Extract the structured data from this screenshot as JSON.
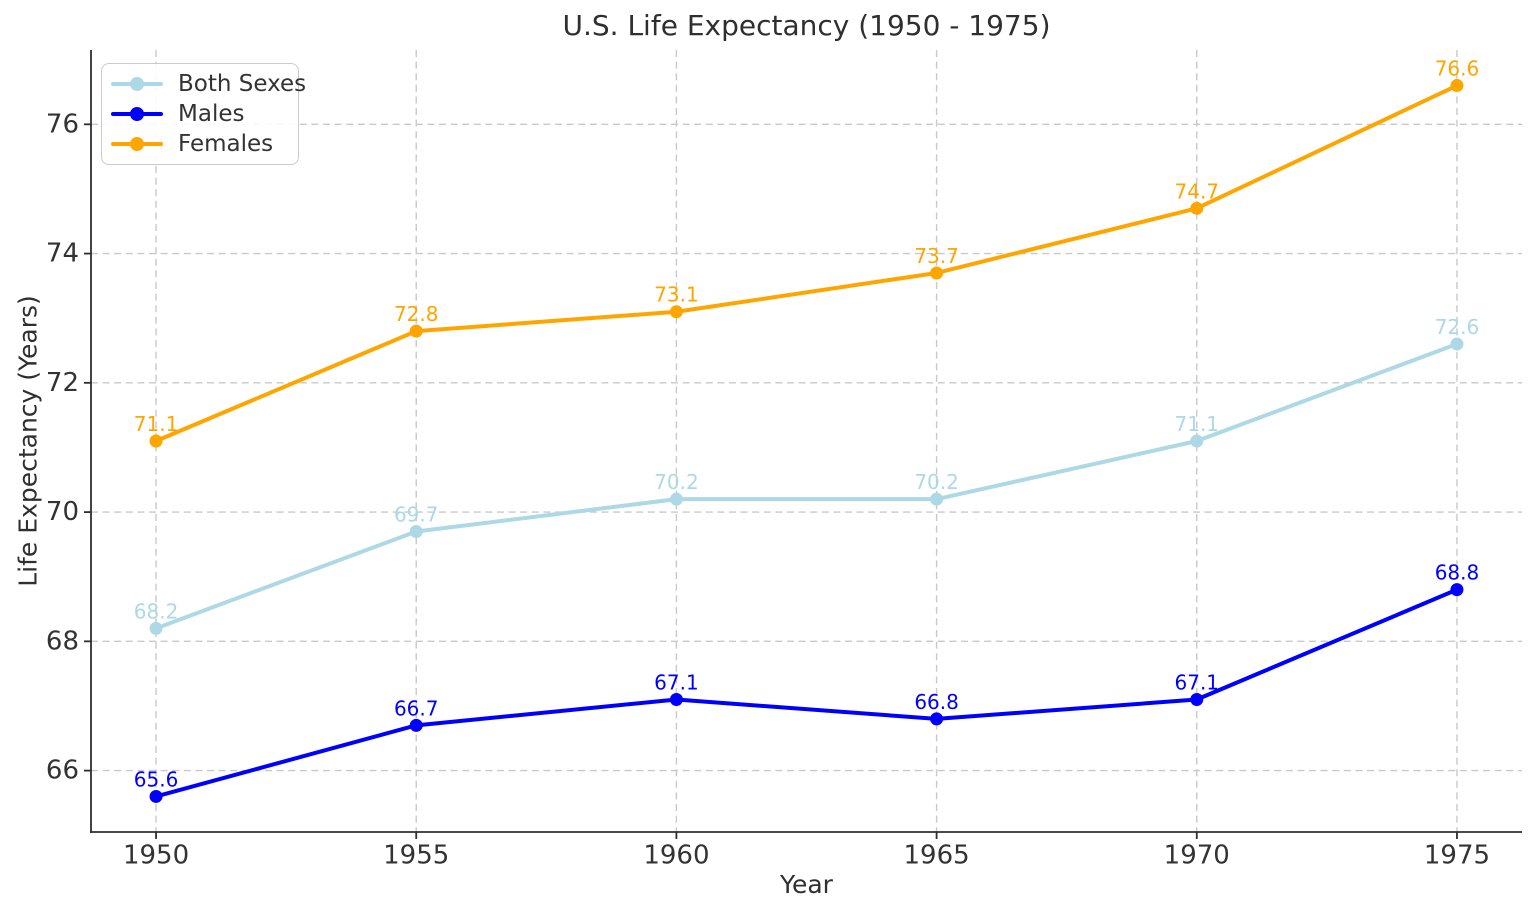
{
  "chart_data": {
    "type": "line",
    "title": "U.S. Life Expectancy (1950 - 1975)",
    "xlabel": "Year",
    "ylabel": "Life Expectancy (Years)",
    "x": [
      1950,
      1955,
      1960,
      1965,
      1970,
      1975
    ],
    "series": [
      {
        "name": "Both Sexes",
        "color": "#ADD8E6",
        "values": [
          68.2,
          69.7,
          70.2,
          70.2,
          71.1,
          72.6
        ]
      },
      {
        "name": "Males",
        "color": "#0000FF",
        "values": [
          65.6,
          66.7,
          67.1,
          66.8,
          67.1,
          68.8
        ]
      },
      {
        "name": "Females",
        "color": "#FFA500",
        "values": [
          71.1,
          72.8,
          73.1,
          73.7,
          74.7,
          76.6
        ]
      }
    ],
    "xticks": [
      1950,
      1955,
      1960,
      1965,
      1970,
      1975
    ],
    "yticks": [
      66,
      68,
      70,
      72,
      74,
      76
    ],
    "xlim": [
      1948.75,
      1976.25
    ],
    "ylim": [
      65.05,
      77.15
    ],
    "grid": true,
    "point_labels": true,
    "legend_position": "upper left"
  },
  "style_colors": {
    "grid": "#c9c9c9",
    "axis": "#2f2f2f",
    "text": "#333333"
  }
}
